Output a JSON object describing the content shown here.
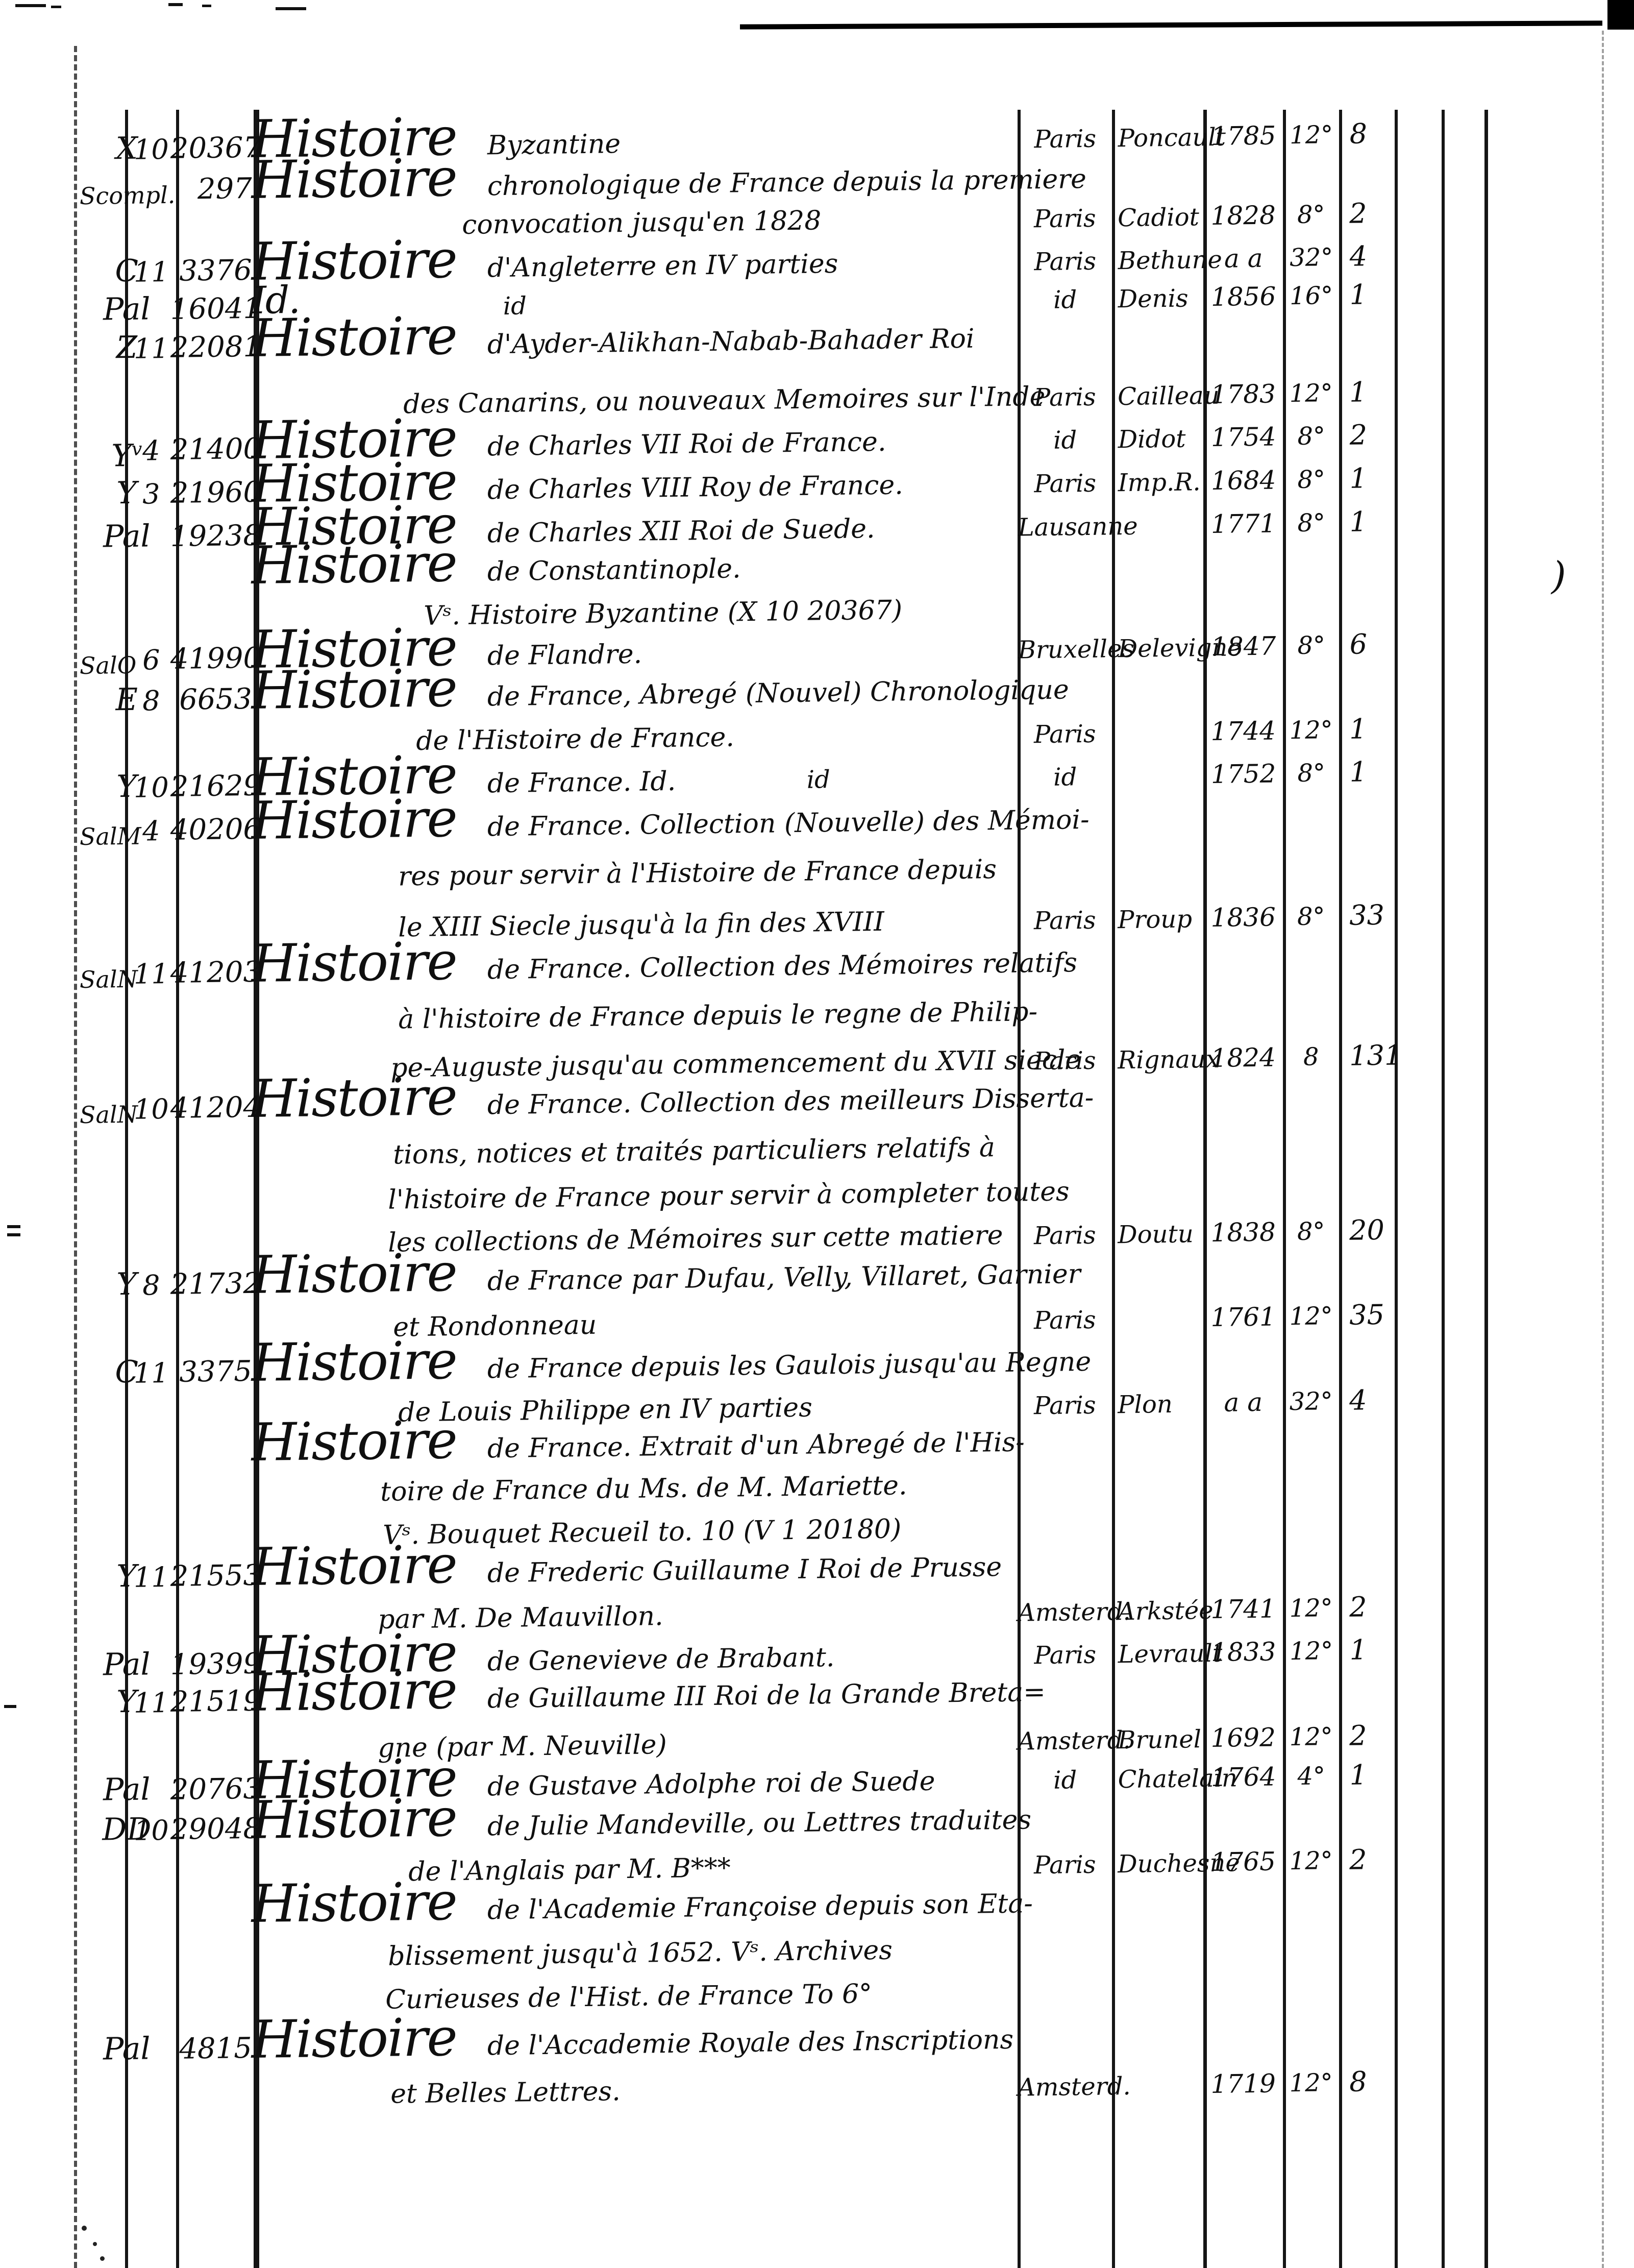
{
  "page": {
    "background": "#ffffff",
    "ink": "#0f0f0f",
    "stray_mark": ")"
  },
  "entries": [
    {
      "shelf": "X",
      "shelf_sup": "",
      "no": "10",
      "catalog": "20367",
      "lines": [
        {
          "lead": "Histoire",
          "text": "Byzantine"
        }
      ],
      "place": "Paris",
      "publisher": "Poncault",
      "year": "1785",
      "format": "12°",
      "vols": "8",
      "extra": ""
    },
    {
      "shelf": "Scompl.",
      "shelf_sup": "",
      "no": "",
      "catalog": "297",
      "lines": [
        {
          "lead": "Histoire",
          "text": "chronologique de France depuis la premiere"
        },
        {
          "lead": "",
          "text": "convocation jusqu'en 1828"
        }
      ],
      "place": "Paris",
      "publisher": "Cadiot",
      "year": "1828",
      "format": "8°",
      "vols": "2",
      "extra": ""
    },
    {
      "shelf": "C",
      "shelf_sup": "",
      "no": "11",
      "catalog": "3376",
      "lines": [
        {
          "lead": "Histoire",
          "text": "d'Angleterre en IV parties"
        }
      ],
      "place": "Paris",
      "publisher": "Bethune",
      "year": "a a",
      "format": "32°",
      "vols": "4",
      "extra": ""
    },
    {
      "shelf": "Pal",
      "shelf_sup": "",
      "no": "",
      "catalog": "16041",
      "lines": [
        {
          "lead": "Id.",
          "text": ""
        }
      ],
      "place": "id",
      "publisher": "Denis",
      "year": "1856",
      "format": "16°",
      "vols": "1",
      "extra": "id"
    },
    {
      "shelf": "Z",
      "shelf_sup": "",
      "no": "11",
      "catalog": "22081",
      "lines": [
        {
          "lead": "Histoire",
          "text": "d'Ayder-Alikhan-Nabab-Bahader Roi"
        },
        {
          "lead": "",
          "text": "des Canarins, ou nouveaux Memoires sur l'Inde"
        }
      ],
      "place": "Paris",
      "publisher": "Cailleau",
      "year": "1783",
      "format": "12°",
      "vols": "1",
      "extra": ""
    },
    {
      "shelf": "Y",
      "shelf_sup": "v",
      "no": "4",
      "catalog": "21400",
      "lines": [
        {
          "lead": "Histoire",
          "text": "de Charles VII Roi de France."
        }
      ],
      "place": "id",
      "publisher": "Didot",
      "year": "1754",
      "format": "8°",
      "vols": "2",
      "extra": ""
    },
    {
      "shelf": "Y",
      "shelf_sup": "",
      "no": "3",
      "catalog": "21960",
      "lines": [
        {
          "lead": "Histoire",
          "text": "de Charles VIII Roy de France."
        }
      ],
      "place": "Paris",
      "publisher": "Imp.R.",
      "year": "1684",
      "format": "8°",
      "vols": "1",
      "extra": ""
    },
    {
      "shelf": "Pal",
      "shelf_sup": "",
      "no": "",
      "catalog": "19238",
      "lines": [
        {
          "lead": "Histoire",
          "text": "de Charles XII Roi de Suede."
        }
      ],
      "place": "Lausanne",
      "publisher": "",
      "year": "1771",
      "format": "8°",
      "vols": "1",
      "extra": ""
    },
    {
      "shelf": "",
      "shelf_sup": "",
      "no": "",
      "catalog": "",
      "lines": [
        {
          "lead": "Histoire",
          "text": "de Constantinople."
        },
        {
          "lead": "",
          "text": "Vˢ. Histoire Byzantine (X 10 20367)"
        }
      ],
      "place": "",
      "publisher": "",
      "year": "",
      "format": "",
      "vols": "",
      "extra": ""
    },
    {
      "shelf": "SalO",
      "shelf_sup": "",
      "no": "6",
      "catalog": "41990",
      "lines": [
        {
          "lead": "Histoire",
          "text": "de Flandre."
        }
      ],
      "place": "Bruxelles",
      "publisher": "Delevigne",
      "year": "1847",
      "format": "8°",
      "vols": "6",
      "extra": ""
    },
    {
      "shelf": "E",
      "shelf_sup": "",
      "no": "8",
      "catalog": "6653",
      "lines": [
        {
          "lead": "Histoire",
          "text": "de France, Abregé (Nouvel) Chronologique"
        },
        {
          "lead": "",
          "text": "de l'Histoire de France."
        }
      ],
      "place": "Paris",
      "publisher": "",
      "year": "1744",
      "format": "12°",
      "vols": "1",
      "extra": ""
    },
    {
      "shelf": "Y",
      "shelf_sup": "",
      "no": "10",
      "catalog": "21629",
      "lines": [
        {
          "lead": "Histoire",
          "text": "de France. Id."
        }
      ],
      "place": "id",
      "publisher": "",
      "year": "1752",
      "format": "8°",
      "vols": "1",
      "extra": "id"
    },
    {
      "shelf": "SalM",
      "shelf_sup": "",
      "no": "4",
      "catalog": "40206",
      "lines": [
        {
          "lead": "Histoire",
          "text": "de France. Collection (Nouvelle) des Mémoi-"
        },
        {
          "lead": "",
          "text": "res pour servir à l'Histoire de France depuis"
        },
        {
          "lead": "",
          "text": "le XIII Siecle jusqu'à la fin des XVIII"
        }
      ],
      "place": "Paris",
      "publisher": "Proup",
      "year": "1836",
      "format": "8°",
      "vols": "33",
      "extra": ""
    },
    {
      "shelf": "SalN",
      "shelf_sup": "",
      "no": "11",
      "catalog": "41203",
      "lines": [
        {
          "lead": "Histoire",
          "text": "de France. Collection des Mémoires relatifs"
        },
        {
          "lead": "",
          "text": "à l'histoire de France depuis le regne de Philip-"
        },
        {
          "lead": "",
          "text": "pe-Auguste jusqu'au commencement du XVII siecle"
        }
      ],
      "place": "Paris",
      "publisher": "Rignaux",
      "year": "1824",
      "format": "8",
      "vols": "131",
      "extra": ""
    },
    {
      "shelf": "SalN",
      "shelf_sup": "",
      "no": "10",
      "catalog": "41204",
      "lines": [
        {
          "lead": "Histoire",
          "text": "de France. Collection des meilleurs Disserta-"
        },
        {
          "lead": "",
          "text": "tions, notices et traités particuliers relatifs à"
        },
        {
          "lead": "",
          "text": "l'histoire de France pour servir à completer toutes"
        },
        {
          "lead": "",
          "text": "les collections de Mémoires sur cette matiere"
        }
      ],
      "place": "Paris",
      "publisher": "Doutu",
      "year": "1838",
      "format": "8°",
      "vols": "20",
      "extra": ""
    },
    {
      "shelf": "Y",
      "shelf_sup": "",
      "no": "8",
      "catalog": "21732",
      "lines": [
        {
          "lead": "Histoire",
          "text": "de France par Dufau, Velly, Villaret, Garnier"
        },
        {
          "lead": "",
          "text": "et Rondonneau"
        }
      ],
      "place": "Paris",
      "publisher": "",
      "year": "1761",
      "format": "12°",
      "vols": "35",
      "extra": ""
    },
    {
      "shelf": "C",
      "shelf_sup": "",
      "no": "11",
      "catalog": "3375",
      "lines": [
        {
          "lead": "Histoire",
          "text": "de France depuis les Gaulois jusqu'au Regne"
        },
        {
          "lead": "",
          "text": "de Louis Philippe en IV parties"
        }
      ],
      "place": "Paris",
      "publisher": "Plon",
      "year": "a a",
      "format": "32°",
      "vols": "4",
      "extra": ""
    },
    {
      "shelf": "",
      "shelf_sup": "",
      "no": "",
      "catalog": "",
      "lines": [
        {
          "lead": "Histoire",
          "text": "de France. Extrait d'un Abregé de l'His-"
        },
        {
          "lead": "",
          "text": "toire de France du Ms. de M. Mariette."
        },
        {
          "lead": "",
          "text": "Vˢ. Bouquet Recueil to. 10 (V 1 20180)"
        }
      ],
      "place": "",
      "publisher": "",
      "year": "",
      "format": "",
      "vols": "",
      "extra": ""
    },
    {
      "shelf": "Y",
      "shelf_sup": "",
      "no": "11",
      "catalog": "21553",
      "lines": [
        {
          "lead": "Histoire",
          "text": "de Frederic Guillaume I Roi de Prusse"
        },
        {
          "lead": "",
          "text": "par M. De Mauvillon."
        }
      ],
      "place": "Amsterd.",
      "publisher": "Arkstée",
      "year": "1741",
      "format": "12°",
      "vols": "2",
      "extra": ""
    },
    {
      "shelf": "Pal",
      "shelf_sup": "",
      "no": "",
      "catalog": "19399",
      "lines": [
        {
          "lead": "Histoire",
          "text": "de Genevieve de Brabant."
        }
      ],
      "place": "Paris",
      "publisher": "Levrault",
      "year": "1833",
      "format": "12°",
      "vols": "1",
      "extra": ""
    },
    {
      "shelf": "Y",
      "shelf_sup": "",
      "no": "11",
      "catalog": "21519",
      "lines": [
        {
          "lead": "Histoire",
          "text": "de Guillaume III Roi de la Grande Breta="
        },
        {
          "lead": "",
          "text": "gne (par M. Neuville)"
        }
      ],
      "place": "Amsterd.",
      "publisher": "Brunel",
      "year": "1692",
      "format": "12°",
      "vols": "2",
      "extra": ""
    },
    {
      "shelf": "Pal",
      "shelf_sup": "",
      "no": "",
      "catalog": "20763",
      "lines": [
        {
          "lead": "Histoire",
          "text": "de Gustave Adolphe roi de Suede"
        }
      ],
      "place": "id",
      "publisher": "Chatelain",
      "year": "1764",
      "format": "4°",
      "vols": "1",
      "extra": ""
    },
    {
      "shelf": "DD",
      "shelf_sup": "",
      "no": "10",
      "catalog": "29048",
      "lines": [
        {
          "lead": "Histoire",
          "text": "de Julie Mandeville, ou Lettres traduites"
        },
        {
          "lead": "",
          "text": "de l'Anglais par M. B***"
        }
      ],
      "place": "Paris",
      "publisher": "Duchesne",
      "year": "1765",
      "format": "12°",
      "vols": "2",
      "extra": ""
    },
    {
      "shelf": "",
      "shelf_sup": "",
      "no": "",
      "catalog": "",
      "lines": [
        {
          "lead": "Histoire",
          "text": "de l'Academie Françoise depuis son Eta-"
        },
        {
          "lead": "",
          "text": "blissement jusqu'à 1652. Vˢ. Archives"
        },
        {
          "lead": "",
          "text": "Curieuses de l'Hist. de France To 6°"
        }
      ],
      "place": "",
      "publisher": "",
      "year": "",
      "format": "",
      "vols": "",
      "extra": ""
    },
    {
      "shelf": "Pal",
      "shelf_sup": "",
      "no": "",
      "catalog": "4815",
      "lines": [
        {
          "lead": "Histoire",
          "text": "de l'Accademie Royale des Inscriptions"
        },
        {
          "lead": "",
          "text": "et Belles Lettres."
        }
      ],
      "place": "Amsterd.",
      "publisher": "",
      "year": "1719",
      "format": "12°",
      "vols": "8",
      "extra": ""
    }
  ]
}
